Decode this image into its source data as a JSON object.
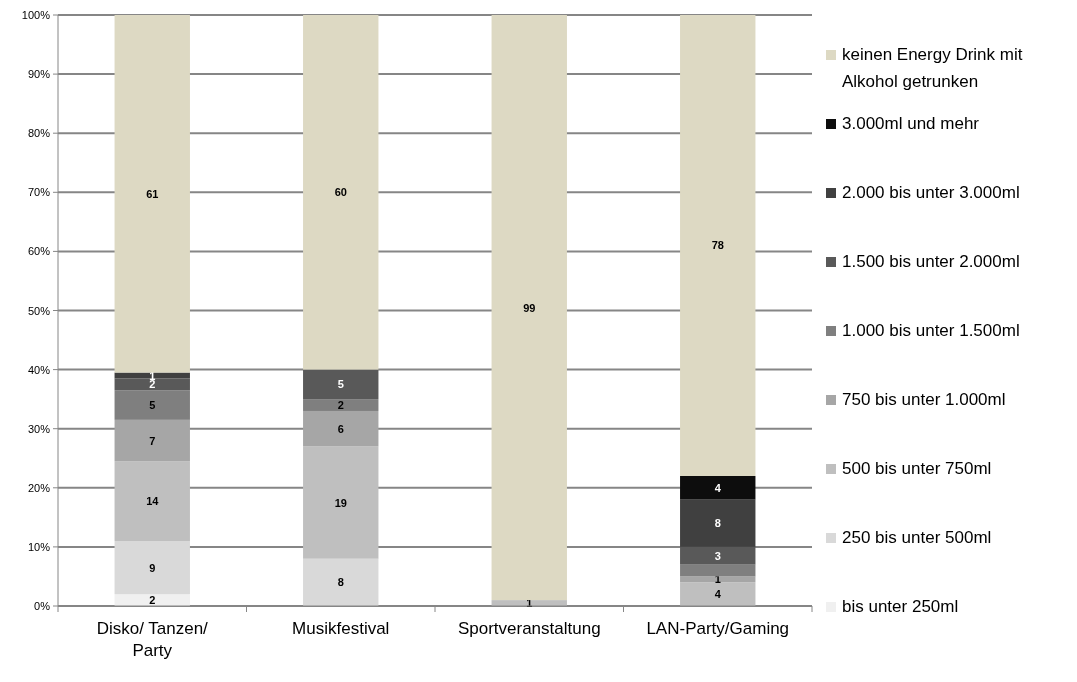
{
  "chart_data": {
    "type": "bar",
    "stacked": true,
    "categories": [
      "Disko/ Tanzen/ Party",
      "Musikfestival",
      "Sportveranstaltung",
      "LAN-Party/Gaming"
    ],
    "ylim": [
      0,
      100
    ],
    "yticks": [
      {
        "value": 0,
        "label": "0%"
      },
      {
        "value": 10,
        "label": "10%"
      },
      {
        "value": 20,
        "label": "20%"
      },
      {
        "value": 30,
        "label": "30%"
      },
      {
        "value": 40,
        "label": "40%"
      },
      {
        "value": 50,
        "label": "50%"
      },
      {
        "value": 60,
        "label": "60%"
      },
      {
        "value": 70,
        "label": "70%"
      },
      {
        "value": 80,
        "label": "80%"
      },
      {
        "value": 90,
        "label": "90%"
      },
      {
        "value": 100,
        "label": "100%"
      }
    ],
    "grid": "y",
    "legend": "right",
    "series": [
      {
        "name": "bis unter 250ml",
        "color": "#f0f0f0",
        "values": [
          2,
          0,
          0,
          0
        ],
        "value_labels": [
          "2",
          null,
          null,
          null
        ]
      },
      {
        "name": "250 bis unter 500ml",
        "color": "#d9d9d9",
        "values": [
          9,
          8,
          0,
          0
        ],
        "value_labels": [
          "9",
          "8",
          null,
          null
        ]
      },
      {
        "name": "500 bis unter 750ml",
        "color": "#bfbfbf",
        "values": [
          13.5,
          19,
          1,
          4
        ],
        "value_labels": [
          "14",
          "19",
          "1",
          "4"
        ]
      },
      {
        "name": "750 bis unter 1.000ml",
        "color": "#a6a6a6",
        "values": [
          7,
          6,
          0,
          1
        ],
        "value_labels": [
          "7",
          "6",
          null,
          "1"
        ]
      },
      {
        "name": "1.000 bis unter 1.500ml",
        "color": "#7f7f7f",
        "values": [
          5,
          2,
          0,
          2
        ],
        "value_labels": [
          "5",
          "2",
          null,
          null
        ]
      },
      {
        "name": "1.500 bis unter 2.000ml",
        "color": "#595959",
        "values": [
          2,
          5,
          0,
          3
        ],
        "value_labels": [
          "2",
          "5",
          null,
          "3"
        ]
      },
      {
        "name": "2.000 bis unter 3.000ml",
        "color": "#404040",
        "values": [
          1,
          0,
          0,
          8
        ],
        "value_labels": [
          "1",
          null,
          null,
          "8"
        ]
      },
      {
        "name": "3.000ml und mehr",
        "color": "#0d0d0d",
        "values": [
          0,
          0,
          0,
          4
        ],
        "value_labels": [
          null,
          null,
          null,
          "4"
        ]
      },
      {
        "name": "keinen Energy Drink mit Alkohol getrunken",
        "color": "#ddd9c3",
        "values": [
          60.5,
          60,
          99,
          78
        ],
        "value_labels": [
          "61",
          "60",
          "99",
          "78"
        ]
      }
    ]
  }
}
